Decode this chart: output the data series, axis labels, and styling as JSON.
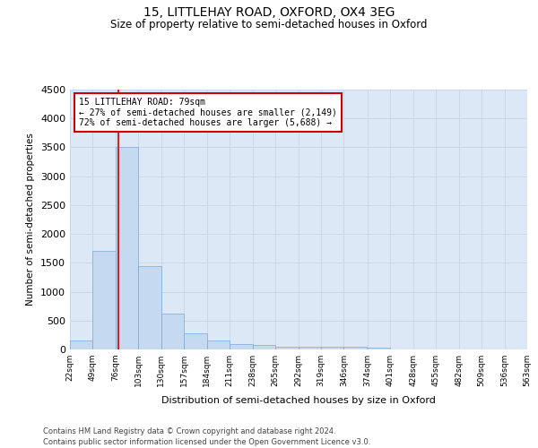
{
  "title": "15, LITTLEHAY ROAD, OXFORD, OX4 3EG",
  "subtitle": "Size of property relative to semi-detached houses in Oxford",
  "xlabel": "Distribution of semi-detached houses by size in Oxford",
  "ylabel": "Number of semi-detached properties",
  "footnote1": "Contains HM Land Registry data © Crown copyright and database right 2024.",
  "footnote2": "Contains public sector information licensed under the Open Government Licence v3.0.",
  "annotation_title": "15 LITTLEHAY ROAD: 79sqm",
  "annotation_line1": "← 27% of semi-detached houses are smaller (2,149)",
  "annotation_line2": "72% of semi-detached houses are larger (5,688) →",
  "property_size": 79,
  "bar_left_edges": [
    22,
    49,
    76,
    103,
    130,
    157,
    184,
    211,
    238,
    265,
    292,
    319,
    346,
    374,
    401,
    428,
    455,
    482,
    509,
    536
  ],
  "bar_heights": [
    150,
    1700,
    3500,
    1450,
    625,
    275,
    150,
    100,
    75,
    50,
    50,
    40,
    40,
    30,
    0,
    0,
    0,
    0,
    0,
    0
  ],
  "bin_width": 27,
  "bar_color": "#c5d9f0",
  "bar_edge_color": "#7fa8d1",
  "vline_color": "#cc0000",
  "vline_x": 79,
  "annotation_box_color": "#cc0000",
  "grid_color": "#c8d8e8",
  "bg_color": "#dce8f5",
  "ylim": [
    0,
    4500
  ],
  "yticks": [
    0,
    500,
    1000,
    1500,
    2000,
    2500,
    3000,
    3500,
    4000,
    4500
  ],
  "tick_labels": [
    "22sqm",
    "49sqm",
    "76sqm",
    "103sqm",
    "130sqm",
    "157sqm",
    "184sqm",
    "211sqm",
    "238sqm",
    "265sqm",
    "292sqm",
    "319sqm",
    "346sqm",
    "374sqm",
    "401sqm",
    "428sqm",
    "455sqm",
    "482sqm",
    "509sqm",
    "536sqm",
    "563sqm"
  ],
  "title_fontsize": 10,
  "subtitle_fontsize": 8.5,
  "ylabel_fontsize": 7.5,
  "xlabel_fontsize": 8,
  "ytick_fontsize": 8,
  "xtick_fontsize": 6.5,
  "footnote_fontsize": 6
}
